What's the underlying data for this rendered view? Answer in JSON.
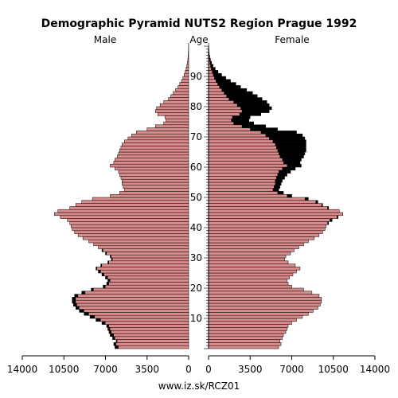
{
  "chart_data": {
    "type": "population-pyramid",
    "title": "Demographic Pyramid NUTS2 Region Prague 1992",
    "left_label": "Male",
    "center_label": "Age",
    "right_label": "Female",
    "footer": "www.iz.sk/RCZ01",
    "x_ticks_left": [
      "14000",
      "10500",
      "7000",
      "3500",
      "0"
    ],
    "x_ticks_right": [
      "0",
      "3500",
      "7000",
      "10500",
      "14000"
    ],
    "age_ticks": [
      "10",
      "20",
      "30",
      "40",
      "50",
      "60",
      "70",
      "80",
      "90"
    ],
    "xlim": [
      0,
      14000
    ],
    "age_range": [
      0,
      100
    ],
    "colors": {
      "male_fill": "#d98a8a",
      "female_fill": "#d98a8a",
      "surplus_fill": "#000000",
      "bar_outline": "#000000"
    },
    "series": [
      {
        "name": "Male",
        "ages": [
          0,
          1,
          2,
          3,
          4,
          5,
          6,
          7,
          8,
          9,
          10,
          11,
          12,
          13,
          14,
          15,
          16,
          17,
          18,
          19,
          20,
          21,
          22,
          23,
          24,
          25,
          26,
          27,
          28,
          29,
          30,
          31,
          32,
          33,
          34,
          35,
          36,
          37,
          38,
          39,
          40,
          41,
          42,
          43,
          44,
          45,
          46,
          47,
          48,
          49,
          50,
          51,
          52,
          53,
          54,
          55,
          56,
          57,
          58,
          59,
          60,
          61,
          62,
          63,
          64,
          65,
          66,
          67,
          68,
          69,
          70,
          71,
          72,
          73,
          74,
          75,
          76,
          77,
          78,
          79,
          80,
          81,
          82,
          83,
          84,
          85,
          86,
          87,
          88,
          89,
          90,
          91,
          92,
          93,
          94,
          95,
          96,
          97,
          98,
          99,
          100
        ],
        "values": [
          6200,
          6300,
          6100,
          6400,
          6600,
          6700,
          6800,
          6900,
          7300,
          7800,
          8300,
          8800,
          9200,
          9500,
          9700,
          9800,
          9800,
          9600,
          9000,
          8200,
          7200,
          6900,
          6800,
          7000,
          7300,
          7600,
          7800,
          7400,
          6800,
          6500,
          6600,
          7000,
          7300,
          7600,
          8000,
          8400,
          8900,
          9300,
          9600,
          9800,
          9900,
          10000,
          10200,
          10800,
          11300,
          11000,
          10000,
          9500,
          9000,
          8100,
          6600,
          5800,
          5400,
          5500,
          5600,
          5600,
          5700,
          5800,
          5900,
          6200,
          6600,
          6300,
          6200,
          6000,
          5900,
          5800,
          5700,
          5600,
          5400,
          5100,
          4800,
          4400,
          3500,
          2800,
          2100,
          1900,
          2000,
          2600,
          2800,
          2700,
          2400,
          2100,
          1700,
          1500,
          1300,
          1100,
          900,
          750,
          600,
          480,
          380,
          290,
          210,
          150,
          100,
          70,
          45,
          30,
          18,
          10,
          6
        ]
      },
      {
        "name": "Female",
        "ages": [
          0,
          1,
          2,
          3,
          4,
          5,
          6,
          7,
          8,
          9,
          10,
          11,
          12,
          13,
          14,
          15,
          16,
          17,
          18,
          19,
          20,
          21,
          22,
          23,
          24,
          25,
          26,
          27,
          28,
          29,
          30,
          31,
          32,
          33,
          34,
          35,
          36,
          37,
          38,
          39,
          40,
          41,
          42,
          43,
          44,
          45,
          46,
          47,
          48,
          49,
          50,
          51,
          52,
          53,
          54,
          55,
          56,
          57,
          58,
          59,
          60,
          61,
          62,
          63,
          64,
          65,
          66,
          67,
          68,
          69,
          70,
          71,
          72,
          73,
          74,
          75,
          76,
          77,
          78,
          79,
          80,
          81,
          82,
          83,
          84,
          85,
          86,
          87,
          88,
          89,
          90,
          91,
          92,
          93,
          94,
          95,
          96,
          97,
          98,
          99,
          100
        ],
        "values": [
          5900,
          6100,
          6000,
          6200,
          6300,
          6500,
          6600,
          6700,
          7000,
          7400,
          7900,
          8400,
          8800,
          9200,
          9400,
          9500,
          9500,
          9300,
          8700,
          8000,
          7000,
          6700,
          6600,
          6800,
          7100,
          7400,
          7700,
          7300,
          6700,
          6400,
          6500,
          6900,
          7200,
          7600,
          8000,
          8400,
          8900,
          9300,
          9600,
          9800,
          9900,
          10100,
          10400,
          10900,
          11300,
          11000,
          10100,
          9600,
          9200,
          8400,
          7000,
          6300,
          5900,
          6000,
          6100,
          6200,
          6400,
          6600,
          6900,
          7300,
          7800,
          7700,
          7800,
          8000,
          8100,
          8200,
          8200,
          8200,
          8200,
          8100,
          7900,
          7400,
          5800,
          4800,
          3800,
          3400,
          3500,
          4400,
          5100,
          5300,
          5100,
          4900,
          4500,
          4100,
          3700,
          3200,
          2700,
          2300,
          1850,
          1450,
          1100,
          800,
          560,
          380,
          250,
          160,
          100,
          60,
          35,
          20,
          10
        ]
      }
    ]
  }
}
